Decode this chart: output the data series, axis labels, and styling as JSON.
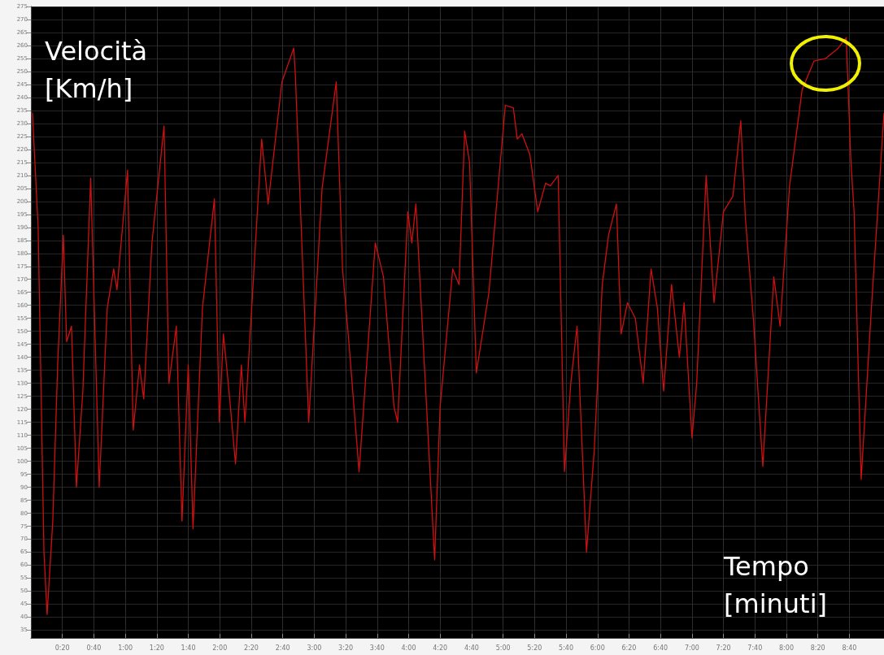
{
  "chart_data": {
    "type": "line",
    "xlabel": "Tempo\n[minuti]",
    "ylabel": "Velocità\n[Km/h]",
    "x": [
      1,
      4.6,
      8.3,
      10.3,
      13.9,
      17,
      20.6,
      22.7,
      25.8,
      28.9,
      33,
      38,
      43.4,
      48.5,
      52.6,
      54.7,
      61.4,
      65,
      69,
      71.7,
      76.9,
      84.6,
      87.7,
      92.4,
      96,
      100,
      103,
      109,
      116.6,
      119.7,
      122.3,
      125.4,
      130,
      133.7,
      136,
      146.6,
      150.7,
      159.5,
      167,
      168,
      176.5,
      185,
      194,
      198,
      202,
      208.5,
      218.8,
      224,
      230.7,
      233,
      239.5,
      242,
      244.6,
      250,
      256.5,
      260,
      268,
      272,
      275.6,
      278.7,
      283,
      291,
      301.4,
      306.5,
      309,
      312,
      317,
      322,
      327,
      330,
      335,
      339,
      343,
      347,
      353,
      358,
      363,
      367,
      372,
      375,
      379,
      384,
      389,
      394,
      398,
      402,
      407,
      412,
      415,
      420,
      423,
      429,
      434,
      440,
      446,
      451,
      454,
      459,
      465,
      472,
      476,
      482,
      490,
      497.5,
      505,
      513,
      518,
      521,
      523,
      527.5,
      534,
      542
    ],
    "series": [
      {
        "color": "#d01010",
        "values": [
          234,
          190,
          65,
          41,
          77,
          137,
          187,
          146,
          152,
          90,
          127,
          209,
          90,
          159,
          174,
          166,
          212,
          112,
          137,
          124,
          184,
          229,
          130,
          152,
          77,
          137,
          74,
          159,
          201,
          115,
          149,
          130,
          99,
          137,
          115,
          224,
          199,
          246,
          259,
          249,
          115,
          205,
          246,
          174,
          146,
          96,
          184,
          171,
          121,
          115,
          196,
          184,
          199,
          137,
          62,
          121,
          174,
          168,
          227,
          215,
          134,
          165,
          237,
          236,
          224,
          226,
          218,
          196,
          207,
          206,
          210,
          96,
          130,
          152,
          65,
          105,
          168,
          187,
          199,
          149,
          161,
          155,
          130,
          174,
          159,
          127,
          168,
          140,
          161,
          109,
          130,
          210,
          161,
          196,
          202,
          231,
          193,
          155,
          98,
          171,
          152,
          206,
          243,
          254,
          255,
          259,
          263,
          215,
          196,
          93,
          159,
          234
        ]
      }
    ],
    "xlim": [
      0,
      542
    ],
    "ylim": [
      32,
      275
    ],
    "xticks": [
      {
        "value": 20,
        "label": "0:20"
      },
      {
        "value": 40,
        "label": "0:40"
      },
      {
        "value": 60,
        "label": "1:00"
      },
      {
        "value": 80,
        "label": "1:20"
      },
      {
        "value": 100,
        "label": "1:40"
      },
      {
        "value": 120,
        "label": "2:00"
      },
      {
        "value": 140,
        "label": "2:20"
      },
      {
        "value": 160,
        "label": "2:40"
      },
      {
        "value": 180,
        "label": "3:00"
      },
      {
        "value": 200,
        "label": "3:20"
      },
      {
        "value": 220,
        "label": "3:40"
      },
      {
        "value": 240,
        "label": "4:00"
      },
      {
        "value": 260,
        "label": "4:20"
      },
      {
        "value": 280,
        "label": "4:40"
      },
      {
        "value": 300,
        "label": "5:00"
      },
      {
        "value": 320,
        "label": "5:20"
      },
      {
        "value": 340,
        "label": "5:40"
      },
      {
        "value": 360,
        "label": "6:00"
      },
      {
        "value": 380,
        "label": "6:20"
      },
      {
        "value": 400,
        "label": "6:40"
      },
      {
        "value": 420,
        "label": "7:00"
      },
      {
        "value": 440,
        "label": "7:20"
      },
      {
        "value": 460,
        "label": "7:40"
      },
      {
        "value": 480,
        "label": "8:00"
      },
      {
        "value": 500,
        "label": "8:20"
      },
      {
        "value": 520,
        "label": "8:40"
      }
    ],
    "yticks": [
      35,
      40,
      45,
      50,
      55,
      60,
      65,
      70,
      75,
      80,
      85,
      90,
      95,
      100,
      105,
      110,
      115,
      120,
      125,
      130,
      135,
      140,
      145,
      150,
      155,
      160,
      165,
      170,
      175,
      180,
      185,
      190,
      195,
      200,
      205,
      210,
      215,
      220,
      225,
      230,
      235,
      240,
      245,
      250,
      255,
      260,
      265,
      270,
      275
    ],
    "grid": true,
    "marker": "none",
    "line_style": "solid"
  }
}
